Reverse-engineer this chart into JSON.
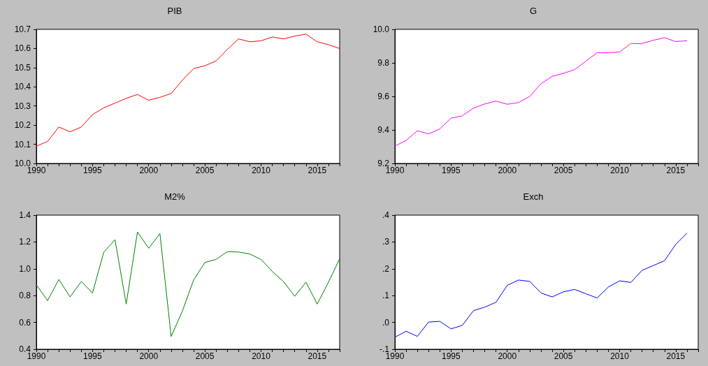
{
  "chart_data": [
    {
      "type": "line",
      "title": "PIB",
      "x": [
        1990,
        1991,
        1992,
        1993,
        1994,
        1995,
        1996,
        1997,
        1998,
        1999,
        2000,
        2001,
        2002,
        2003,
        2004,
        2005,
        2006,
        2007,
        2008,
        2009,
        2010,
        2011,
        2012,
        2013,
        2014,
        2015,
        2016,
        2017
      ],
      "series": [
        {
          "color": "#ff0000",
          "values": [
            10.09,
            10.115,
            10.19,
            10.165,
            10.19,
            10.255,
            10.29,
            10.315,
            10.34,
            10.36,
            10.33,
            10.345,
            10.365,
            10.435,
            10.495,
            10.51,
            10.535,
            10.595,
            10.65,
            10.635,
            10.64,
            10.66,
            10.65,
            10.665,
            10.675,
            10.635,
            10.62,
            10.6
          ]
        }
      ],
      "xlim": [
        1990,
        2017
      ],
      "xticks": [
        1990,
        1995,
        2000,
        2005,
        2010,
        2015
      ],
      "ylim": [
        10.0,
        10.7
      ],
      "yticks": [
        {
          "value": 10.0,
          "label": "10.0"
        },
        10.1,
        10.2,
        10.3,
        10.4,
        10.5,
        10.6,
        10.7
      ],
      "grid": false,
      "marker": "none",
      "line_style": "solid"
    },
    {
      "type": "line",
      "title": "G",
      "series": [
        {
          "color": "#ff00ff",
          "x": [
            1990,
            1991,
            1992,
            1993,
            1994,
            1995,
            1996,
            1997,
            1998,
            1999,
            2000,
            2001,
            2002,
            2003,
            2004,
            2005,
            2006,
            2007,
            2008,
            2009,
            2010,
            2011,
            2012,
            2013,
            2014,
            2015,
            2016
          ],
          "values": [
            9.304,
            9.337,
            9.395,
            9.376,
            9.406,
            9.47,
            9.484,
            9.53,
            9.555,
            9.572,
            9.553,
            9.563,
            9.6,
            9.675,
            9.72,
            9.737,
            9.76,
            9.81,
            9.86,
            9.86,
            9.865,
            9.915,
            9.915,
            9.935,
            9.95,
            9.927,
            9.932
          ]
        }
      ],
      "xlim": [
        1990,
        2017
      ],
      "xticks": [
        1990,
        1995,
        2000,
        2005,
        2010,
        2015
      ],
      "ylim": [
        9.2,
        10.0
      ],
      "yticks": [
        9.2,
        9.4,
        9.6,
        9.8,
        {
          "value": 10.0,
          "label": "10.0"
        }
      ],
      "grid": false,
      "marker": "none",
      "line_style": "solid"
    },
    {
      "type": "line",
      "title": "M2%",
      "x": [
        1990,
        1991,
        1992,
        1993,
        1994,
        1995,
        1996,
        1997,
        1998,
        1999,
        2000,
        2001,
        2002,
        2003,
        2004,
        2005,
        2006,
        2007,
        2008,
        2009,
        2010,
        2011,
        2012,
        2013,
        2014,
        2015,
        2016,
        2017
      ],
      "series": [
        {
          "color": "#008000",
          "values": [
            0.88,
            0.763,
            0.92,
            0.79,
            0.905,
            0.82,
            1.123,
            1.217,
            0.737,
            1.274,
            1.153,
            1.262,
            0.495,
            0.685,
            0.916,
            1.047,
            1.07,
            1.127,
            1.125,
            1.11,
            1.07,
            0.98,
            0.905,
            0.795,
            0.9,
            0.737,
            0.9,
            1.075
          ]
        }
      ],
      "xlim": [
        1990,
        2017
      ],
      "xticks": [
        1990,
        1995,
        2000,
        2005,
        2010,
        2015
      ],
      "ylim": [
        0.4,
        1.4
      ],
      "yticks": [
        0.4,
        0.6,
        0.8,
        {
          "value": 1.0,
          "label": "1.0"
        },
        1.2,
        1.4
      ],
      "grid": false,
      "marker": "none",
      "line_style": "solid"
    },
    {
      "type": "line",
      "title": "Exch",
      "series": [
        {
          "color": "#0000ff",
          "x": [
            1990,
            1991,
            1992,
            1993,
            1994,
            1995,
            1996,
            1997,
            1998,
            1999,
            2000,
            2001,
            2002,
            2003,
            2004,
            2005,
            2006,
            2007,
            2008,
            2009,
            2010,
            2011,
            2012,
            2013,
            2014,
            2015,
            2016
          ],
          "values": [
            -0.055,
            -0.033,
            -0.052,
            0.001,
            0.004,
            -0.024,
            -0.011,
            0.044,
            0.057,
            0.075,
            0.138,
            0.158,
            0.153,
            0.11,
            0.095,
            0.114,
            0.123,
            0.107,
            0.091,
            0.132,
            0.155,
            0.149,
            0.194,
            0.212,
            0.23,
            0.291,
            0.333
          ]
        }
      ],
      "xlim": [
        1990,
        2017
      ],
      "xticks": [
        1990,
        1995,
        2000,
        2005,
        2010,
        2015
      ],
      "ylim": [
        -0.1,
        0.4
      ],
      "yticks": [
        {
          "value": -0.1,
          "label": "-.1"
        },
        {
          "value": 0.0,
          "label": ".0"
        },
        {
          "value": 0.1,
          "label": ".1"
        },
        {
          "value": 0.2,
          "label": ".2"
        },
        {
          "value": 0.3,
          "label": ".3"
        },
        {
          "value": 0.4,
          "label": ".4"
        }
      ],
      "grid": false,
      "marker": "none",
      "line_style": "solid"
    }
  ]
}
